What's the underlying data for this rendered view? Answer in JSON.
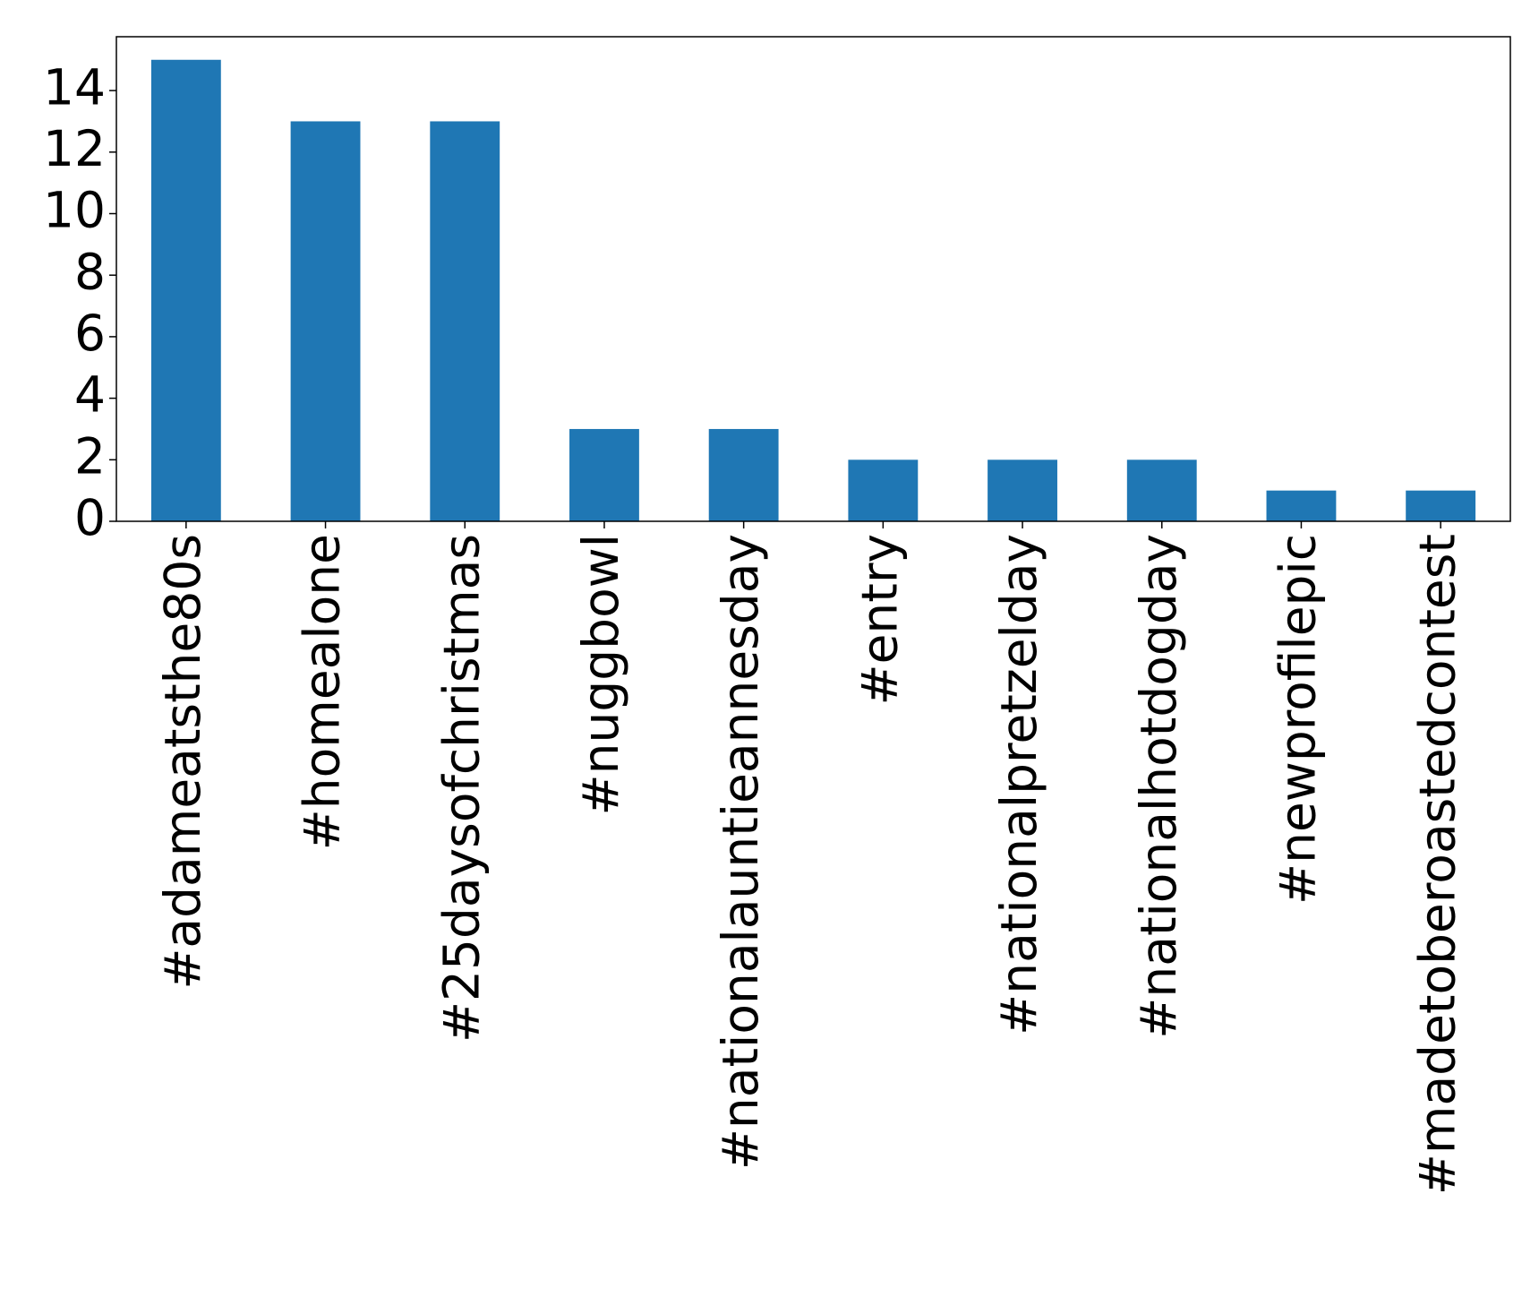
{
  "chart_data": {
    "type": "bar",
    "categories": [
      "#adameatsthe80s",
      "#homealone",
      "#25daysofchristmas",
      "#nuggbowl",
      "#nationalauntieannesday",
      "#entry",
      "#nationalpretzelday",
      "#nationalhotdogday",
      "#newprofilepic",
      "#madetoberoastedcontest"
    ],
    "values": [
      15,
      13,
      13,
      3,
      3,
      2,
      2,
      2,
      1,
      1
    ],
    "color": "#1f77b4",
    "ylim": [
      0,
      15.75
    ],
    "yticks": [
      0,
      2,
      4,
      6,
      8,
      10,
      12,
      14
    ],
    "grid": false
  }
}
